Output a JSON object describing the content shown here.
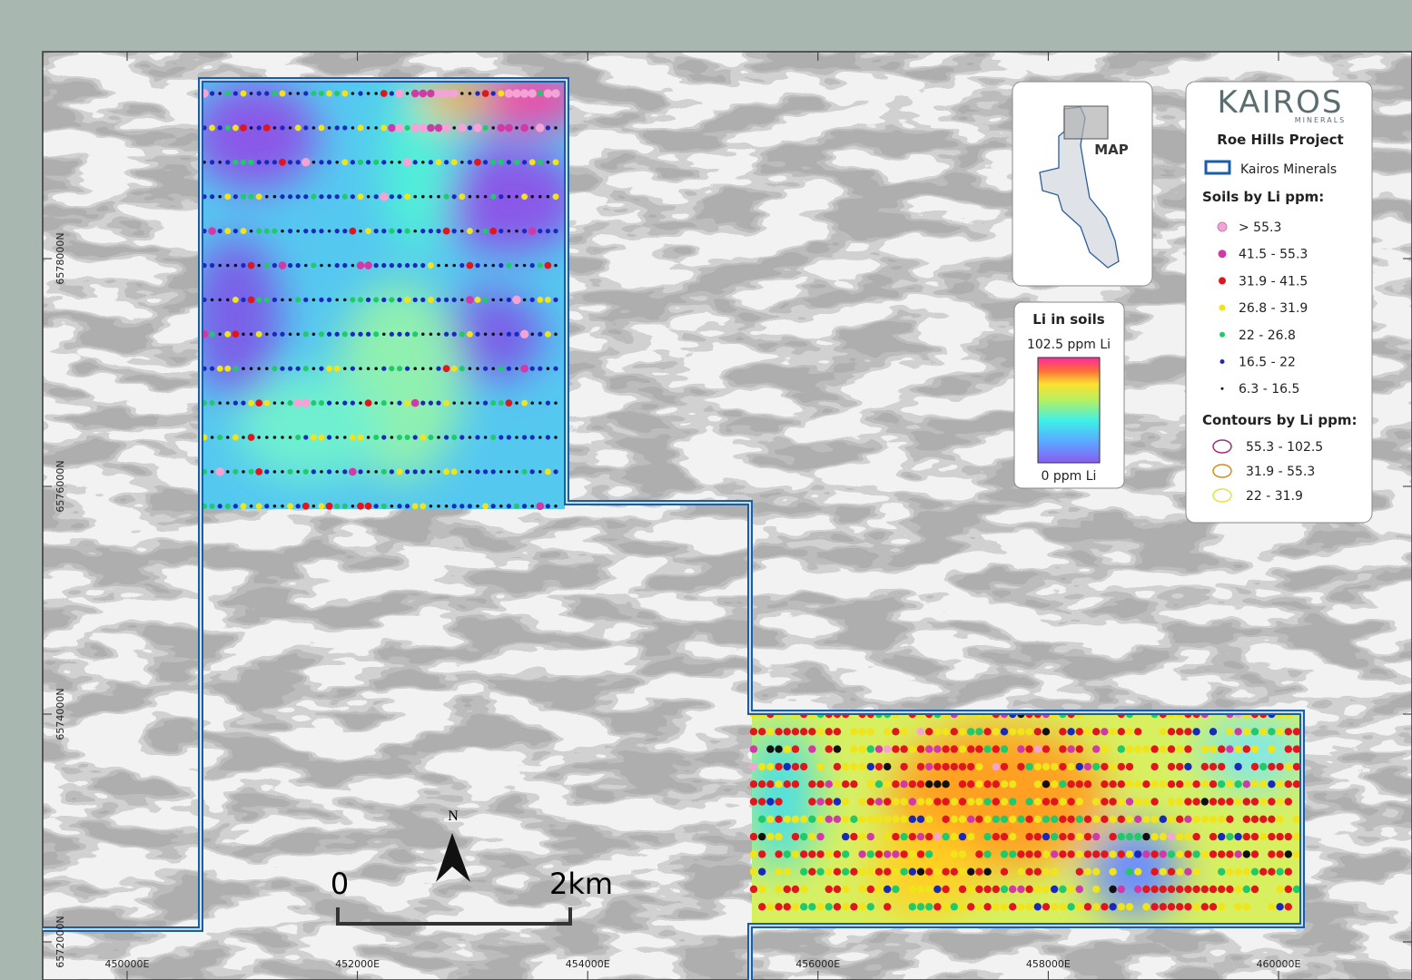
{
  "grid": {
    "eastings": [
      "450000E",
      "452000E",
      "454000E",
      "456000E",
      "458000E",
      "460000E"
    ],
    "northings": [
      "6578000N",
      "6576000N",
      "6574000N",
      "6572000N"
    ]
  },
  "scale_bar": {
    "start": "0",
    "end": "2km"
  },
  "north": "N",
  "inset": {
    "label": "MAP"
  },
  "colorbar": {
    "title": "Li in soils",
    "max": "102.5 ppm Li",
    "min": "0 ppm Li"
  },
  "legend": {
    "brand": "KAIROS",
    "brand_sub": "MINERALS",
    "project": "Roe Hills Project",
    "tenement": "Kairos Minerals",
    "soils_title": "Soils by Li ppm:",
    "soils": [
      {
        "label": "> 55.3",
        "color": "#f5a3d6"
      },
      {
        "label": "41.5 - 55.3",
        "color": "#d13aa6"
      },
      {
        "label": "31.9 - 41.5",
        "color": "#e0161c"
      },
      {
        "label": "26.8 - 31.9",
        "color": "#f2e41a"
      },
      {
        "label": "22 - 26.8",
        "color": "#22c96a"
      },
      {
        "label": "16.5 - 22",
        "color": "#1a2ab8"
      },
      {
        "label": "6.3 - 16.5",
        "color": "#111111"
      }
    ],
    "contours_title": "Contours by Li ppm:",
    "contours": [
      {
        "label": "55.3 - 102.5",
        "color": "#a0307a"
      },
      {
        "label": "31.9 - 55.3",
        "color": "#d98a1e"
      },
      {
        "label": "22 - 31.9",
        "color": "#e8e04a"
      }
    ]
  }
}
